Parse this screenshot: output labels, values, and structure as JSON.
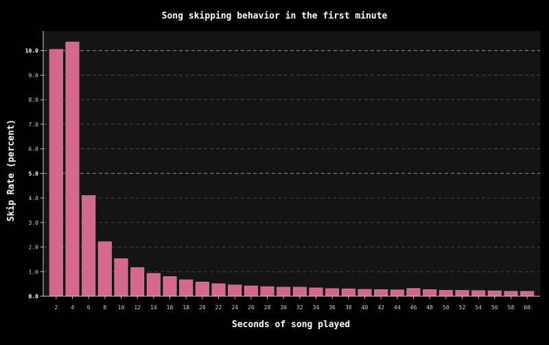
{
  "chart_data": {
    "type": "bar",
    "title": "Song skipping behavior in the first minute",
    "xlabel": "Seconds of song played",
    "ylabel": "Skip Rate (percent)",
    "categories": [
      "2",
      "4",
      "6",
      "8",
      "10",
      "12",
      "14",
      "16",
      "18",
      "20",
      "22",
      "24",
      "26",
      "28",
      "30",
      "32",
      "34",
      "36",
      "38",
      "40",
      "42",
      "44",
      "46",
      "48",
      "50",
      "52",
      "54",
      "56",
      "58",
      "60"
    ],
    "values": [
      10.05,
      10.35,
      4.1,
      2.22,
      1.53,
      1.17,
      0.93,
      0.8,
      0.67,
      0.58,
      0.51,
      0.46,
      0.42,
      0.39,
      0.37,
      0.37,
      0.34,
      0.31,
      0.3,
      0.28,
      0.27,
      0.26,
      0.32,
      0.27,
      0.24,
      0.24,
      0.23,
      0.22,
      0.2,
      0.2
    ],
    "yticks": [
      "0.0",
      "1.0",
      "2.0",
      "3.0",
      "4.0",
      "5.0",
      "6.0",
      "7.0",
      "8.0",
      "9.0",
      "10.0"
    ],
    "ylim": [
      0,
      10.8
    ],
    "major_gridlines": [
      0,
      5,
      10
    ],
    "bar_color": "#d4688c",
    "plot_background": "#141414",
    "page_background": "#000000",
    "grid": true
  }
}
